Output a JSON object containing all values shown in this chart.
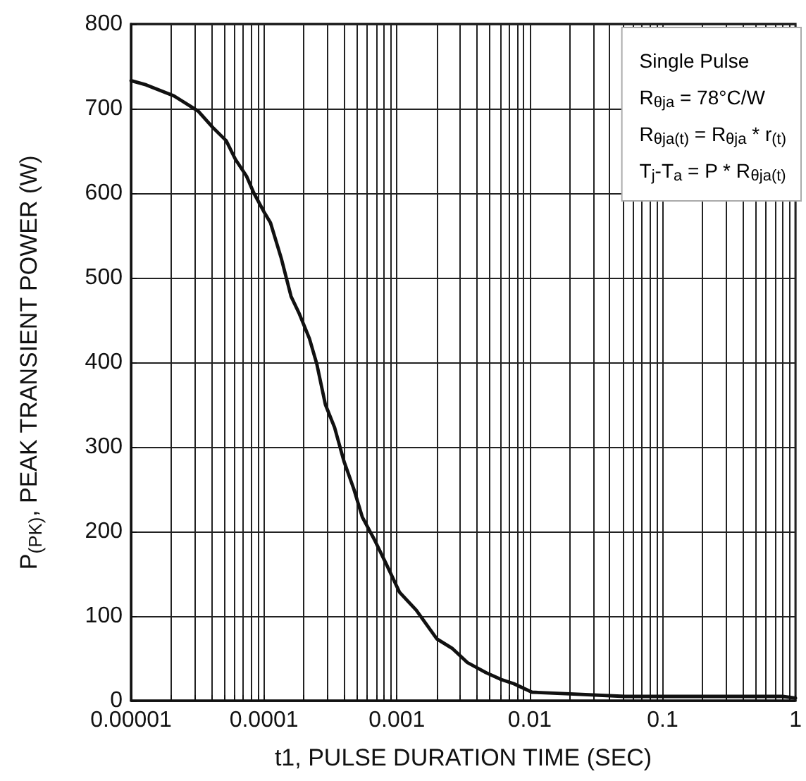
{
  "chart_data": {
    "type": "line",
    "xlabel": "t1, PULSE DURATION TIME (SEC)",
    "ylabel": "P$_{(PK)}$, PEAK TRANSIENT POWER (W)",
    "annotations": [
      "Single Pulse",
      "R$_{θja}$ = 78°C/W",
      "R$_{θja(t)}$ = R$_{θja}$ * r$_{(t)}$",
      "T$_{j}$-T$_{a}$ = P * R$_{θja(t)}$"
    ],
    "series": [
      {
        "color": "#111111",
        "x": [
          1e-05,
          1.3e-05,
          2.1e-05,
          3.2e-05,
          4.1e-05,
          5.2e-05,
          6.1e-05,
          7.4e-05,
          8.4e-05,
          0.0001,
          0.000112,
          0.000135,
          0.00016,
          0.000185,
          0.00022,
          0.00025,
          0.00029,
          0.00034,
          0.0004,
          0.000475,
          0.00055,
          0.00068,
          0.00083,
          0.00105,
          0.0014,
          0.002,
          0.0026,
          0.0034,
          0.0047,
          0.0061,
          0.0076,
          0.0104,
          0.02,
          0.052,
          0.19,
          0.8,
          1
        ],
        "values": [
          733,
          728,
          715,
          697,
          678,
          662,
          640,
          620,
          600,
          578,
          565,
          523,
          478,
          457,
          428,
          398,
          350,
          323,
          283,
          250,
          217,
          190,
          162,
          128,
          107,
          73,
          62,
          45,
          33,
          25,
          20,
          10,
          8,
          5,
          5,
          5,
          3
        ]
      }
    ],
    "log": "x",
    "grid": true,
    "marker": "none",
    "line_style": "solid",
    "xlim": [
      1e-05,
      1
    ],
    "xticks": [
      {
        "value": 1e-05,
        "label": "0.00001"
      },
      {
        "value": 2e-05,
        "label": null
      },
      {
        "value": 3e-05,
        "label": null
      },
      {
        "value": 4e-05,
        "label": null
      },
      {
        "value": 5e-05,
        "label": null
      },
      {
        "value": 6e-05,
        "label": null
      },
      {
        "value": 7e-05,
        "label": null
      },
      {
        "value": 8e-05,
        "label": null
      },
      {
        "value": 9e-05,
        "label": null
      },
      {
        "value": 0.0001,
        "label": "0.0001"
      },
      {
        "value": 0.0002,
        "label": null
      },
      {
        "value": 0.0003,
        "label": null
      },
      {
        "value": 0.0004,
        "label": null
      },
      {
        "value": 0.0005,
        "label": null
      },
      {
        "value": 0.0006,
        "label": null
      },
      {
        "value": 0.0007,
        "label": null
      },
      {
        "value": 0.0008,
        "label": null
      },
      {
        "value": 0.0009,
        "label": null
      },
      {
        "value": 0.001,
        "label": "0.001"
      },
      {
        "value": 0.002,
        "label": null
      },
      {
        "value": 0.003,
        "label": null
      },
      {
        "value": 0.004,
        "label": null
      },
      {
        "value": 0.005,
        "label": null
      },
      {
        "value": 0.006,
        "label": null
      },
      {
        "value": 0.007,
        "label": null
      },
      {
        "value": 0.008,
        "label": null
      },
      {
        "value": 0.009,
        "label": null
      },
      {
        "value": 0.01,
        "label": "0.01"
      },
      {
        "value": 0.02,
        "label": null
      },
      {
        "value": 0.03,
        "label": null
      },
      {
        "value": 0.04,
        "label": null
      },
      {
        "value": 0.05,
        "label": null
      },
      {
        "value": 0.06,
        "label": null
      },
      {
        "value": 0.07,
        "label": null
      },
      {
        "value": 0.08,
        "label": null
      },
      {
        "value": 0.09,
        "label": null
      },
      {
        "value": 0.1,
        "label": "0.1"
      },
      {
        "value": 0.2,
        "label": null
      },
      {
        "value": 0.3,
        "label": null
      },
      {
        "value": 0.4,
        "label": null
      },
      {
        "value": 0.5,
        "label": null
      },
      {
        "value": 0.6,
        "label": null
      },
      {
        "value": 0.7,
        "label": null
      },
      {
        "value": 0.8,
        "label": null
      },
      {
        "value": 0.9,
        "label": null
      },
      {
        "value": 1,
        "label": "1"
      }
    ],
    "ylim": [
      0,
      800
    ],
    "yticks": [
      0,
      100,
      200,
      300,
      400,
      500,
      600,
      700,
      800
    ]
  }
}
